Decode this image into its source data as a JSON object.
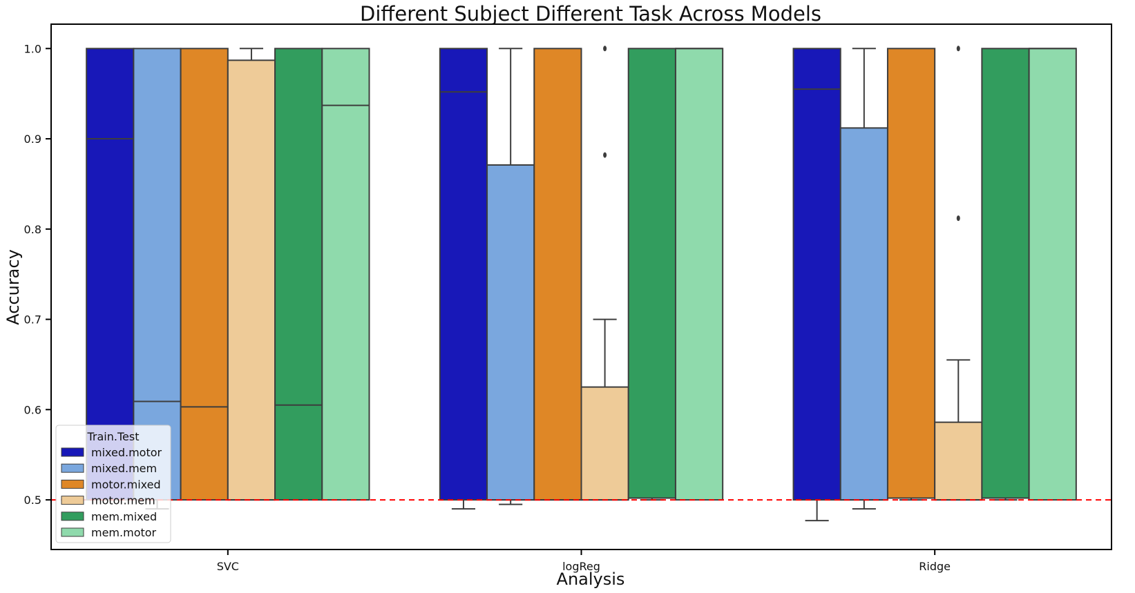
{
  "chart_data": {
    "type": "box",
    "title": "Different Subject Different Task Across Models",
    "xlabel": "Analysis",
    "ylabel": "Accuracy",
    "categories": [
      "SVC",
      "logReg",
      "Ridge"
    ],
    "ylim": [
      0.445,
      1.027
    ],
    "yticks": [
      0.5,
      0.6,
      0.7,
      0.8,
      0.9,
      1.0
    ],
    "ytick_labels": [
      "0.5",
      "0.6",
      "0.7",
      "0.8",
      "0.9",
      "1.0"
    ],
    "grid": false,
    "legend": {
      "title": "Train.Test",
      "placement": "lower-left"
    },
    "reference_line": {
      "y": 0.5,
      "color": "#ff0000",
      "style": "dashed"
    },
    "series": [
      {
        "name": "mixed.motor",
        "color": "#1818b8",
        "boxes": [
          {
            "whislo": 0.5,
            "q1": 0.5,
            "med": 0.9,
            "q3": 1.0,
            "whishi": 1.0,
            "fliers": []
          },
          {
            "whislo": 0.49,
            "q1": 0.5,
            "med": 0.952,
            "q3": 1.0,
            "whishi": 1.0,
            "fliers": []
          },
          {
            "whislo": 0.477,
            "q1": 0.5,
            "med": 0.955,
            "q3": 1.0,
            "whishi": 1.0,
            "fliers": []
          }
        ]
      },
      {
        "name": "mixed.mem",
        "color": "#7aa7de",
        "boxes": [
          {
            "whislo": 0.49,
            "q1": 0.5,
            "med": 0.609,
            "q3": 1.0,
            "whishi": 1.0,
            "fliers": []
          },
          {
            "whislo": 0.495,
            "q1": 0.5,
            "med": 0.5,
            "q3": 0.871,
            "whishi": 1.0,
            "fliers": []
          },
          {
            "whislo": 0.49,
            "q1": 0.5,
            "med": 0.5,
            "q3": 0.912,
            "whishi": 1.0,
            "fliers": []
          }
        ]
      },
      {
        "name": "motor.mixed",
        "color": "#df8726",
        "boxes": [
          {
            "whislo": 0.5,
            "q1": 0.5,
            "med": 0.603,
            "q3": 1.0,
            "whishi": 1.0,
            "fliers": []
          },
          {
            "whislo": 0.5,
            "q1": 0.5,
            "med": 0.5,
            "q3": 1.0,
            "whishi": 1.0,
            "fliers": []
          },
          {
            "whislo": 0.5,
            "q1": 0.502,
            "med": 0.502,
            "q3": 1.0,
            "whishi": 1.0,
            "fliers": []
          }
        ]
      },
      {
        "name": "motor.mem",
        "color": "#eecb98",
        "boxes": [
          {
            "whislo": 0.5,
            "q1": 0.5,
            "med": 0.5,
            "q3": 0.987,
            "whishi": 1.0,
            "fliers": []
          },
          {
            "whislo": 0.5,
            "q1": 0.5,
            "med": 0.5,
            "q3": 0.625,
            "whishi": 0.7,
            "fliers": [
              0.882,
              1.0
            ]
          },
          {
            "whislo": 0.5,
            "q1": 0.5,
            "med": 0.5,
            "q3": 0.586,
            "whishi": 0.655,
            "fliers": [
              0.812,
              1.0
            ]
          }
        ]
      },
      {
        "name": "mem.mixed",
        "color": "#329d5e",
        "boxes": [
          {
            "whislo": 0.5,
            "q1": 0.5,
            "med": 0.605,
            "q3": 1.0,
            "whishi": 1.0,
            "fliers": []
          },
          {
            "whislo": 0.5,
            "q1": 0.502,
            "med": 0.502,
            "q3": 1.0,
            "whishi": 1.0,
            "fliers": []
          },
          {
            "whislo": 0.5,
            "q1": 0.502,
            "med": 0.502,
            "q3": 1.0,
            "whishi": 1.0,
            "fliers": []
          }
        ]
      },
      {
        "name": "mem.motor",
        "color": "#8fdaac",
        "boxes": [
          {
            "whislo": 0.5,
            "q1": 0.5,
            "med": 0.937,
            "q3": 1.0,
            "whishi": 1.0,
            "fliers": []
          },
          {
            "whislo": 0.5,
            "q1": 0.5,
            "med": 1.0,
            "q3": 1.0,
            "whishi": 1.0,
            "fliers": []
          },
          {
            "whislo": 0.5,
            "q1": 0.5,
            "med": 1.0,
            "q3": 1.0,
            "whishi": 1.0,
            "fliers": []
          }
        ]
      }
    ]
  }
}
